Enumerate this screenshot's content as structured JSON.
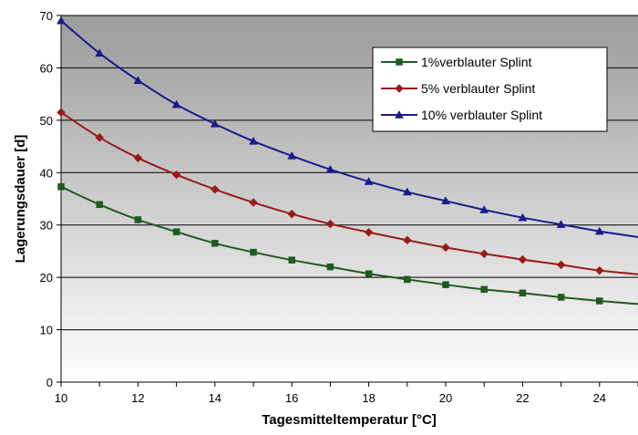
{
  "chart_data": {
    "type": "line",
    "title": "",
    "xlabel": "Tagesmitteltemperatur [°C]",
    "ylabel": "Lagerungsdauer [d]",
    "xlim": [
      10,
      25
    ],
    "ylim": [
      0,
      70
    ],
    "x_ticks": [
      10,
      12,
      14,
      16,
      18,
      20,
      22,
      24
    ],
    "y_ticks": [
      0,
      10,
      20,
      30,
      40,
      50,
      60,
      70
    ],
    "grid": "horizontal",
    "legend_position": "top-right",
    "x": [
      10,
      11,
      12,
      13,
      14,
      15,
      16,
      17,
      18,
      19,
      20,
      21,
      22,
      23,
      24,
      25
    ],
    "series": [
      {
        "name": "1%verblauter Splint",
        "color": "#1f5a1f",
        "marker": "square",
        "values": [
          37.3,
          33.9,
          31.0,
          28.7,
          26.5,
          24.8,
          23.3,
          22.0,
          20.7,
          19.6,
          18.6,
          17.7,
          17.0,
          16.2,
          15.5,
          14.9
        ]
      },
      {
        "name": "5% verblauter Splint",
        "color": "#9a1a1a",
        "marker": "diamond",
        "values": [
          51.5,
          46.7,
          42.8,
          39.6,
          36.8,
          34.3,
          32.1,
          30.2,
          28.6,
          27.1,
          25.7,
          24.5,
          23.4,
          22.4,
          21.3,
          20.6
        ]
      },
      {
        "name": "10% verblauter Splint",
        "color": "#1a1a8c",
        "marker": "triangle",
        "values": [
          69.0,
          62.8,
          57.6,
          53.0,
          49.3,
          46.0,
          43.2,
          40.6,
          38.3,
          36.3,
          34.6,
          32.9,
          31.4,
          30.1,
          28.8,
          27.7
        ]
      }
    ]
  }
}
